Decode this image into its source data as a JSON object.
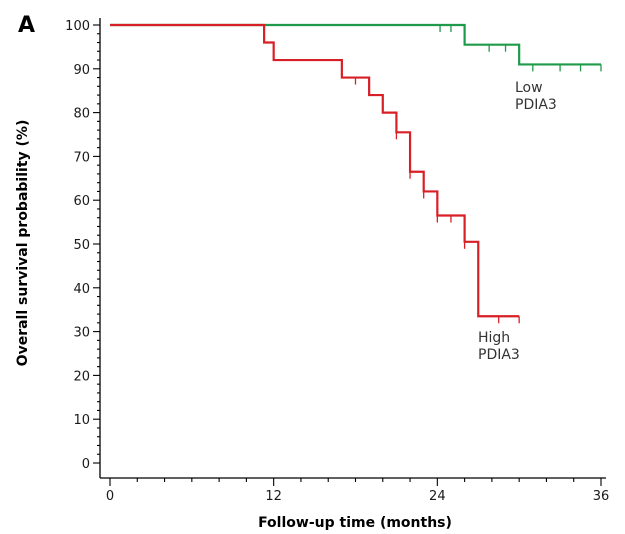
{
  "chart_data": {
    "type": "line",
    "subtype": "kaplan-meier step",
    "panel_label": "A",
    "xlabel": "Follow-up time (months)",
    "ylabel": "Overall survival probability (%)",
    "xlim": [
      0,
      36
    ],
    "ylim": [
      0,
      100
    ],
    "x_major_ticks": [
      0,
      12,
      24,
      36
    ],
    "x_minor_step": 2,
    "y_major_ticks": [
      0,
      10,
      20,
      30,
      40,
      50,
      60,
      70,
      80,
      90,
      100
    ],
    "y_minor_step": 2,
    "grid": false,
    "series": [
      {
        "name_lines": [
          "Low",
          "PDIA3"
        ],
        "color": "#1e9a4a",
        "steps": [
          [
            0,
            100
          ],
          [
            26,
            95.5
          ],
          [
            30,
            91
          ]
        ],
        "end_x": 36,
        "censored": [
          [
            24.2,
            100
          ],
          [
            25,
            100
          ],
          [
            27.8,
            95.5
          ],
          [
            29,
            95.5
          ],
          [
            31,
            91
          ],
          [
            33,
            91
          ],
          [
            34.5,
            91
          ],
          [
            36,
            91
          ]
        ]
      },
      {
        "name_lines": [
          "High",
          "PDIA3"
        ],
        "color": "#d81f26",
        "steps": [
          [
            0,
            100
          ],
          [
            11.3,
            96
          ],
          [
            12,
            92
          ],
          [
            17,
            88
          ],
          [
            19,
            84
          ],
          [
            20,
            80
          ],
          [
            21,
            75.5
          ],
          [
            22,
            66.5
          ],
          [
            23,
            62
          ],
          [
            24,
            56.5
          ],
          [
            26,
            50.5
          ],
          [
            27,
            33.5
          ]
        ],
        "end_x": 30,
        "censored": [
          [
            18,
            88
          ],
          [
            21,
            75.5
          ],
          [
            22,
            66.5
          ],
          [
            23,
            62
          ],
          [
            24,
            56.5
          ],
          [
            25,
            56.5
          ],
          [
            26,
            50.5
          ],
          [
            28.5,
            33.5
          ],
          [
            30,
            33.5
          ]
        ]
      }
    ]
  }
}
